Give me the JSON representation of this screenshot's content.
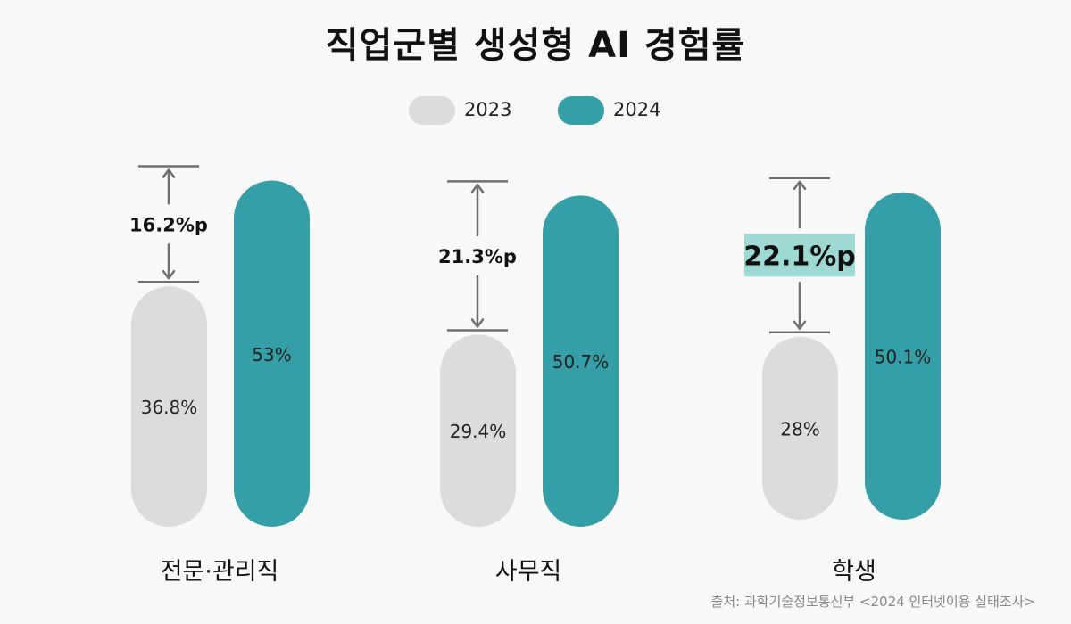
{
  "chart_data": {
    "type": "bar",
    "title": "직업군별 생성형 AI 경험률",
    "categories": [
      "전문·관리직",
      "사무직",
      "학생"
    ],
    "series": [
      {
        "name": "2023",
        "values": [
          36.8,
          29.4,
          28
        ],
        "labels": [
          "36.8%",
          "29.4%",
          "28%"
        ]
      },
      {
        "name": "2024",
        "values": [
          53,
          50.7,
          50.1
        ],
        "labels": [
          "53%",
          "50.7%",
          "50.1%"
        ]
      }
    ],
    "differences": [
      "16.2%p",
      "21.3%p",
      "22.1%p"
    ],
    "highlight_index": 2,
    "legend": "top-center",
    "grid": false,
    "ylim": [
      0,
      60
    ]
  },
  "colors": {
    "series_2023": "#dcdcdc",
    "series_2024": "#349fa6",
    "highlight_box": "#9fd9d4",
    "arrow": "#6f6f6f"
  },
  "source": "출처: 과학기술정보통신부 <2024 인터넷이용 실태조사>"
}
